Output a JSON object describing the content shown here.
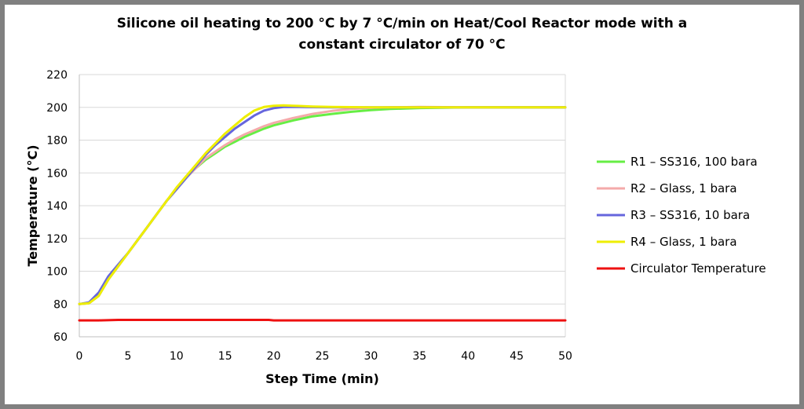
{
  "chart_data": {
    "type": "line",
    "title_line1": "Silicone oil heating to 200 °C by 7 °C/min on Heat/Cool Reactor mode with a",
    "title_line2": "constant circulator of 70 °C",
    "xlabel": "Step Time (min)",
    "ylabel": "Temperature (°C)",
    "xlim": [
      0,
      50
    ],
    "ylim": [
      60,
      220
    ],
    "xticks": [
      0,
      5,
      10,
      15,
      20,
      25,
      30,
      35,
      40,
      45,
      50
    ],
    "yticks": [
      60,
      80,
      100,
      120,
      140,
      160,
      180,
      200,
      220
    ],
    "grid": "horizontal",
    "legend_position": "right",
    "series": [
      {
        "name": "R1 – SS316, 100 bara",
        "color": "#66ee44",
        "points": [
          [
            0,
            80
          ],
          [
            1,
            80.5
          ],
          [
            2,
            85
          ],
          [
            3,
            95
          ],
          [
            4,
            103
          ],
          [
            5,
            111
          ],
          [
            6,
            119
          ],
          [
            7,
            127
          ],
          [
            8,
            135
          ],
          [
            9,
            143
          ],
          [
            10,
            150
          ],
          [
            11,
            157
          ],
          [
            12,
            163
          ],
          [
            13,
            168
          ],
          [
            14,
            172
          ],
          [
            15,
            176
          ],
          [
            16,
            179
          ],
          [
            17,
            182
          ],
          [
            18,
            184.5
          ],
          [
            19,
            187
          ],
          [
            20,
            189
          ],
          [
            22,
            192
          ],
          [
            24,
            194.5
          ],
          [
            26,
            196
          ],
          [
            28,
            197.3
          ],
          [
            30,
            198.3
          ],
          [
            32,
            199
          ],
          [
            35,
            199.6
          ],
          [
            40,
            200
          ],
          [
            45,
            200
          ],
          [
            50,
            200
          ]
        ]
      },
      {
        "name": "R2 –  Glass, 1 bara",
        "color": "#f4aaaa",
        "points": [
          [
            0,
            80
          ],
          [
            1,
            80.5
          ],
          [
            2,
            85
          ],
          [
            3,
            95
          ],
          [
            4,
            103
          ],
          [
            5,
            111
          ],
          [
            6,
            119
          ],
          [
            7,
            127
          ],
          [
            8,
            135
          ],
          [
            9,
            143
          ],
          [
            10,
            150
          ],
          [
            11,
            157
          ],
          [
            12,
            163
          ],
          [
            13,
            169
          ],
          [
            14,
            173
          ],
          [
            15,
            177
          ],
          [
            16,
            180.5
          ],
          [
            17,
            183.5
          ],
          [
            18,
            186
          ],
          [
            19,
            188.5
          ],
          [
            20,
            190.5
          ],
          [
            22,
            193.5
          ],
          [
            24,
            196
          ],
          [
            26,
            197.8
          ],
          [
            28,
            199
          ],
          [
            30,
            199.7
          ],
          [
            32,
            200
          ],
          [
            35,
            200.2
          ],
          [
            40,
            200
          ],
          [
            45,
            200
          ],
          [
            50,
            200
          ]
        ]
      },
      {
        "name": "R3 –  SS316, 10 bara",
        "color": "#6666dd",
        "points": [
          [
            0,
            80
          ],
          [
            1,
            81
          ],
          [
            2,
            87
          ],
          [
            3,
            97
          ],
          [
            4,
            104
          ],
          [
            5,
            111
          ],
          [
            6,
            119
          ],
          [
            7,
            127
          ],
          [
            8,
            135
          ],
          [
            9,
            143
          ],
          [
            10,
            150
          ],
          [
            11,
            157
          ],
          [
            12,
            164
          ],
          [
            13,
            171
          ],
          [
            14,
            177
          ],
          [
            15,
            182
          ],
          [
            16,
            187
          ],
          [
            17,
            191
          ],
          [
            18,
            195
          ],
          [
            19,
            198
          ],
          [
            20,
            199.5
          ],
          [
            21,
            200.2
          ],
          [
            22,
            200.3
          ],
          [
            24,
            200.1
          ],
          [
            26,
            200
          ],
          [
            30,
            200
          ],
          [
            35,
            200
          ],
          [
            40,
            200
          ],
          [
            45,
            200
          ],
          [
            50,
            200
          ]
        ]
      },
      {
        "name": "R4 – Glass, 1 bara",
        "color": "#eeee00",
        "points": [
          [
            0,
            80
          ],
          [
            1,
            80.5
          ],
          [
            2,
            85
          ],
          [
            3,
            95
          ],
          [
            4,
            103
          ],
          [
            5,
            111
          ],
          [
            6,
            119
          ],
          [
            7,
            127
          ],
          [
            8,
            135
          ],
          [
            9,
            143
          ],
          [
            10,
            151
          ],
          [
            11,
            158
          ],
          [
            12,
            165
          ],
          [
            13,
            172
          ],
          [
            14,
            178
          ],
          [
            15,
            184
          ],
          [
            16,
            189
          ],
          [
            17,
            194
          ],
          [
            18,
            198
          ],
          [
            19,
            200.2
          ],
          [
            20,
            201
          ],
          [
            21,
            201.2
          ],
          [
            22,
            201
          ],
          [
            24,
            200.5
          ],
          [
            26,
            200.2
          ],
          [
            30,
            200
          ],
          [
            35,
            200
          ],
          [
            40,
            200
          ],
          [
            45,
            200
          ],
          [
            50,
            200
          ]
        ]
      },
      {
        "name": "Circulator Temperature",
        "color": "#ee1111",
        "points": [
          [
            0,
            70
          ],
          [
            2,
            70
          ],
          [
            4,
            70.3
          ],
          [
            10,
            70.3
          ],
          [
            16,
            70.3
          ],
          [
            19.5,
            70.3
          ],
          [
            20,
            70
          ],
          [
            25,
            70
          ],
          [
            30,
            70
          ],
          [
            35,
            70
          ],
          [
            40,
            70
          ],
          [
            45,
            70
          ],
          [
            50,
            70
          ]
        ]
      }
    ]
  }
}
